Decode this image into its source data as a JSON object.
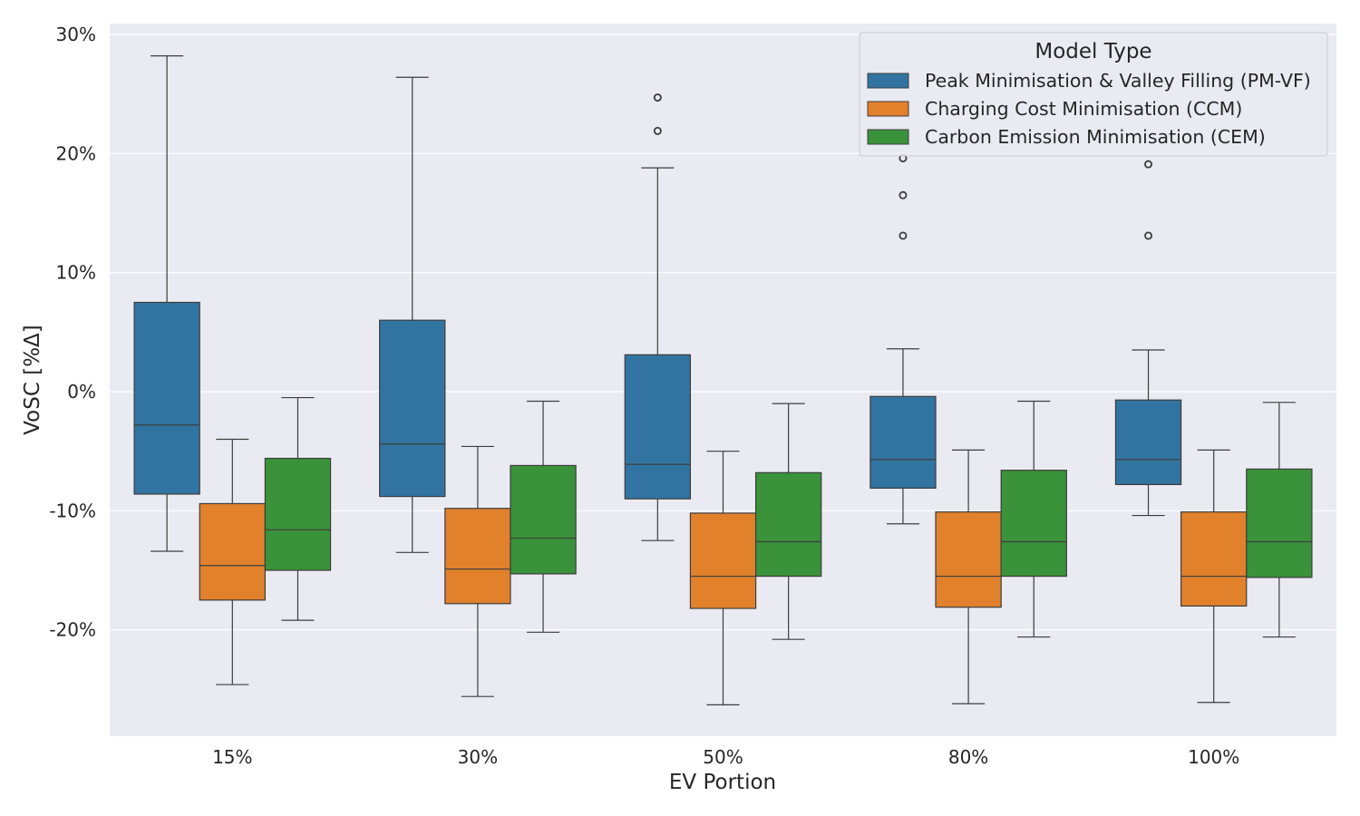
{
  "chart_data": {
    "type": "box",
    "title": "",
    "xlabel": "EV Portion",
    "ylabel": "VoSC [%Δ]",
    "ylim": [
      -29,
      31
    ],
    "yticks": [
      30,
      20,
      10,
      0,
      -10,
      -20
    ],
    "ytick_labels": [
      "30%",
      "20%",
      "10%",
      "0%",
      "-10%",
      "-20%"
    ],
    "categories": [
      "15%",
      "30%",
      "50%",
      "80%",
      "100%"
    ],
    "grid": true,
    "legend": {
      "title": "Model Type",
      "position": "top-right"
    },
    "colors": {
      "background": "#eaeaf2",
      "grid": "#ffffff",
      "line": "#3d3d3d"
    },
    "series": [
      {
        "name": "Peak Minimisation & Valley Filling (PM-VF)",
        "color": "#3274a1",
        "boxes": [
          {
            "whislo": -13.4,
            "q1": -8.6,
            "med": -2.8,
            "q3": 7.5,
            "whishi": 28.2,
            "fliers": []
          },
          {
            "whislo": -13.5,
            "q1": -8.8,
            "med": -4.4,
            "q3": 6.0,
            "whishi": 26.4,
            "fliers": []
          },
          {
            "whislo": -12.5,
            "q1": -9.0,
            "med": -6.1,
            "q3": 3.1,
            "whishi": 18.8,
            "fliers": [
              21.9,
              24.7
            ]
          },
          {
            "whislo": -11.1,
            "q1": -8.1,
            "med": -5.7,
            "q3": -0.4,
            "whishi": 3.6,
            "fliers": [
              13.1,
              16.5,
              19.6
            ]
          },
          {
            "whislo": -10.4,
            "q1": -7.8,
            "med": -5.7,
            "q3": -0.7,
            "whishi": 3.5,
            "fliers": [
              13.1,
              19.1
            ]
          }
        ]
      },
      {
        "name": "Charging Cost Minimisation (CCM)",
        "color": "#e1812c",
        "boxes": [
          {
            "whislo": -24.6,
            "q1": -17.5,
            "med": -14.6,
            "q3": -9.4,
            "whishi": -4.0,
            "fliers": []
          },
          {
            "whislo": -25.6,
            "q1": -17.8,
            "med": -14.9,
            "q3": -9.8,
            "whishi": -4.6,
            "fliers": []
          },
          {
            "whislo": -26.3,
            "q1": -18.2,
            "med": -15.5,
            "q3": -10.2,
            "whishi": -5.0,
            "fliers": []
          },
          {
            "whislo": -26.2,
            "q1": -18.1,
            "med": -15.5,
            "q3": -10.1,
            "whishi": -4.9,
            "fliers": []
          },
          {
            "whislo": -26.1,
            "q1": -18.0,
            "med": -15.5,
            "q3": -10.1,
            "whishi": -4.9,
            "fliers": []
          }
        ]
      },
      {
        "name": "Carbon Emission Minimisation (CEM)",
        "color": "#3a923a",
        "boxes": [
          {
            "whislo": -19.2,
            "q1": -15.0,
            "med": -11.6,
            "q3": -5.6,
            "whishi": -0.5,
            "fliers": []
          },
          {
            "whislo": -20.2,
            "q1": -15.3,
            "med": -12.3,
            "q3": -6.2,
            "whishi": -0.8,
            "fliers": []
          },
          {
            "whislo": -20.8,
            "q1": -15.5,
            "med": -12.6,
            "q3": -6.8,
            "whishi": -1.0,
            "fliers": []
          },
          {
            "whislo": -20.6,
            "q1": -15.5,
            "med": -12.6,
            "q3": -6.6,
            "whishi": -0.8,
            "fliers": []
          },
          {
            "whislo": -20.6,
            "q1": -15.6,
            "med": -12.6,
            "q3": -6.5,
            "whishi": -0.9,
            "fliers": []
          }
        ]
      }
    ]
  }
}
